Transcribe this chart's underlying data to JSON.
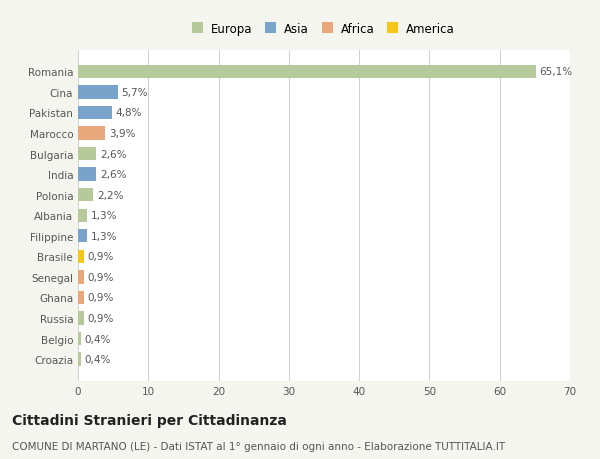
{
  "countries": [
    "Croazia",
    "Belgio",
    "Russia",
    "Ghana",
    "Senegal",
    "Brasile",
    "Filippine",
    "Albania",
    "Polonia",
    "India",
    "Bulgaria",
    "Marocco",
    "Pakistan",
    "Cina",
    "Romania"
  ],
  "values": [
    0.4,
    0.4,
    0.9,
    0.9,
    0.9,
    0.9,
    1.3,
    1.3,
    2.2,
    2.6,
    2.6,
    3.9,
    4.8,
    5.7,
    65.1
  ],
  "labels": [
    "0,4%",
    "0,4%",
    "0,9%",
    "0,9%",
    "0,9%",
    "0,9%",
    "1,3%",
    "1,3%",
    "2,2%",
    "2,6%",
    "2,6%",
    "3,9%",
    "4,8%",
    "5,7%",
    "65,1%"
  ],
  "colors": [
    "#b5c99a",
    "#b5c99a",
    "#b5c99a",
    "#e8a87c",
    "#e8a87c",
    "#f5c518",
    "#7aa3cc",
    "#b5c99a",
    "#b5c99a",
    "#7aa3cc",
    "#b5c99a",
    "#e8a87c",
    "#7aa3cc",
    "#7aa3cc",
    "#b5c99a"
  ],
  "legend_labels": [
    "Europa",
    "Asia",
    "Africa",
    "America"
  ],
  "legend_colors": [
    "#b5c99a",
    "#7aa3cc",
    "#e8a87c",
    "#f5c518"
  ],
  "title": "Cittadini Stranieri per Cittadinanza",
  "subtitle": "COMUNE DI MARTANO (LE) - Dati ISTAT al 1° gennaio di ogni anno - Elaborazione TUTTITALIA.IT",
  "xlim": [
    0,
    70
  ],
  "xticks": [
    0,
    10,
    20,
    30,
    40,
    50,
    60,
    70
  ],
  "background_color": "#f5f5f0",
  "plot_bg_color": "#ffffff",
  "grid_color": "#d0d0d0",
  "title_fontsize": 10,
  "subtitle_fontsize": 7.5,
  "label_fontsize": 7.5,
  "tick_fontsize": 7.5,
  "legend_fontsize": 8.5
}
